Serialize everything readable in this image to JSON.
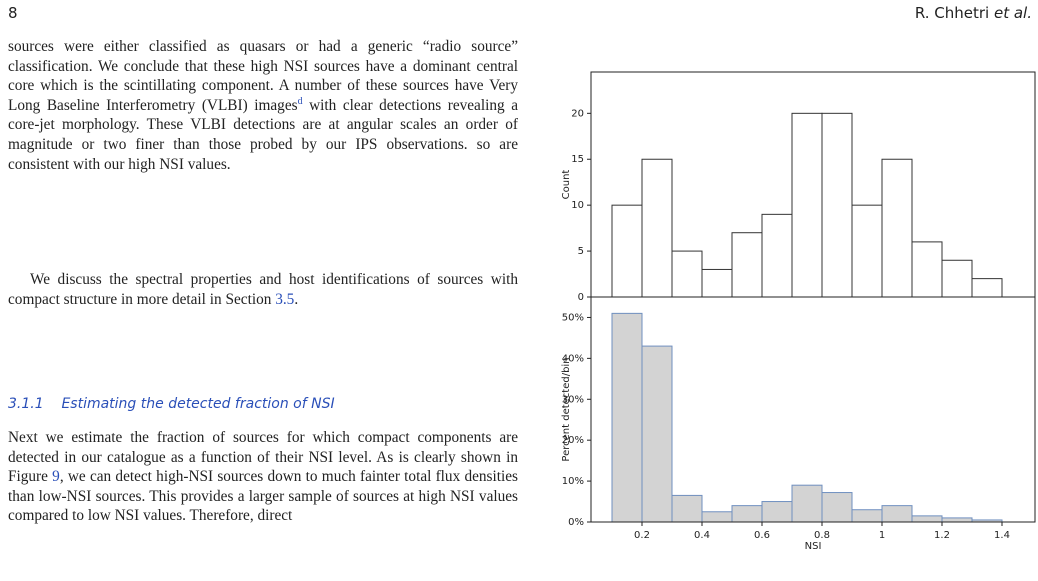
{
  "header": {
    "page_number": "8",
    "authors": "R. Chhetri",
    "authors_italic": "et al."
  },
  "body": {
    "p1_before": "sources were either classified as quasars or had a generic “radio source” classification. We conclude that these high NSI sources have a dominant central core which is the scintillating component. A number of these sources have Very Long Baseline Interferometry (VLBI) images",
    "p1_sup": "d",
    "p1_after": " with clear detections revealing a core-jet morphology. These VLBI detections are at angular scales an order of magnitude or two finer than those probed by our IPS observations. so are consistent with our high NSI values.",
    "p2_before": "We discuss the spectral properties and host identifications of sources with compact structure in more detail in Section ",
    "p2_link": "3.5",
    "p2_after": ".",
    "section_number": "3.1.1",
    "section_title": "Estimating the detected fraction of NSI",
    "p3_before": "Next we estimate the fraction of sources for which compact components are detected in our catalogue as a function of their NSI level. As is clearly shown in Figure ",
    "p3_link": "9",
    "p3_after": ", we can detect high-NSI sources down to much fainter total flux densities than low-NSI sources. This provides a larger sample of sources at high NSI values compared to low NSI values. Therefore, direct"
  },
  "chart_data": [
    {
      "type": "histogram",
      "y_label": "Count",
      "bins": [
        0.1,
        0.2,
        0.3,
        0.4,
        0.5,
        0.6,
        0.7,
        0.8,
        0.9,
        1.0,
        1.1,
        1.2,
        1.3,
        1.4
      ],
      "values": [
        10,
        15,
        5,
        3,
        7,
        9,
        20,
        20,
        10,
        15,
        6,
        4,
        2
      ],
      "color": "#ffffff",
      "edge_color": "#333333",
      "xlim": [
        0.03,
        1.51
      ],
      "ylim": [
        0,
        24.5
      ],
      "yticks": [
        0,
        5,
        10,
        15,
        20
      ]
    },
    {
      "type": "histogram",
      "y_label": "Percent detected/bin",
      "x_label": "NSI",
      "bins": [
        0.1,
        0.2,
        0.3,
        0.4,
        0.5,
        0.6,
        0.7,
        0.8,
        0.9,
        1.0,
        1.1,
        1.2,
        1.3,
        1.4
      ],
      "values": [
        51,
        43,
        6.5,
        2.5,
        4,
        5,
        9,
        7.2,
        3,
        4,
        1.5,
        1,
        0.5
      ],
      "color": "#d3d3d3",
      "edge_color": "#6f8fbf",
      "xlim": [
        0.03,
        1.51
      ],
      "ylim": [
        0,
        55
      ],
      "yticks": [
        {
          "value": 0,
          "label": "0%"
        },
        {
          "value": 10,
          "label": "10%"
        },
        {
          "value": 20,
          "label": "20%"
        },
        {
          "value": 30,
          "label": "30%"
        },
        {
          "value": 40,
          "label": "40%"
        },
        {
          "value": 50,
          "label": "50%"
        }
      ],
      "xticks": [
        0.2,
        0.4,
        0.6,
        0.8,
        1.0,
        1.2,
        1.4
      ]
    }
  ]
}
